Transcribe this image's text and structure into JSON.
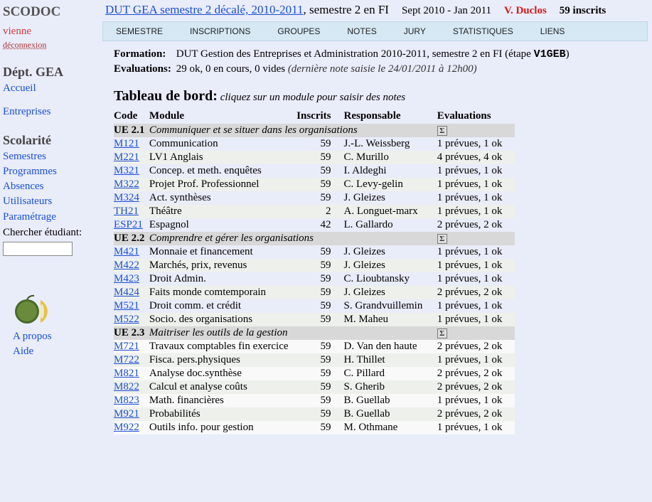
{
  "sidebar": {
    "app_title": "SCODOC",
    "user": "vienne",
    "logout": "déconnexion",
    "dept_title": "Dépt. GEA",
    "accueil": "Accueil",
    "entreprises": "Entreprises",
    "scolarite_title": "Scolarité",
    "nav": {
      "semestres": "Semestres",
      "programmes": "Programmes",
      "absences": "Absences",
      "utilisateurs": "Utilisateurs",
      "parametrage": "Paramétrage"
    },
    "search_label": "Chercher étudiant:",
    "apropos": "A propos",
    "aide": "Aide"
  },
  "header": {
    "sem_link": "DUT GEA semestre 2 décalé, 2010-2011",
    "sem_after": ", semestre 2 en FI",
    "dates": "Sept 2010 - Jan 2011",
    "resp": "V. Duclos",
    "count": "59 inscrits"
  },
  "menubar": {
    "items": [
      "SEMESTRE",
      "INSCRIPTIONS",
      "GROUPES",
      "NOTES",
      "JURY",
      "STATISTIQUES",
      "LIENS"
    ]
  },
  "info": {
    "formation_label": "Formation:",
    "formation_text": "DUT Gestion des Entreprises et Administration 2010-2011, semestre 2 en FI   (étape ",
    "formation_code": "V1GEB",
    "formation_close": ")",
    "eval_label": "Evaluations:",
    "eval_text": "29 ok, 0 en cours, 0 vides ",
    "eval_note": "(dernière note saisie le 24/01/2011 à 12h00)"
  },
  "dashboard": {
    "title": "Tableau de bord:",
    "subtitle": "cliquez sur un module pour saisir des notes"
  },
  "columns": {
    "code": "Code",
    "module": "Module",
    "inscrits": "Inscrits",
    "responsable": "Responsable",
    "evaluations": "Evaluations"
  },
  "ues": [
    {
      "code": "UE 2.1",
      "desc": "Communiquer et se situer dans les organisations",
      "modules": [
        {
          "code": "M121",
          "title": "Communication",
          "ins": "59",
          "resp": "J.-L. Weissberg",
          "eval": "1 prévues, 1 ok"
        },
        {
          "code": "M221",
          "title": "LV1 Anglais",
          "ins": "59",
          "resp": "C. Murillo",
          "eval": "4 prévues, 4 ok"
        },
        {
          "code": "M321",
          "title": "Concep. et meth. enquêtes",
          "ins": "59",
          "resp": "I. Aldeghi",
          "eval": "1 prévues, 1 ok"
        },
        {
          "code": "M322",
          "title": "Projet Prof. Professionnel",
          "ins": "59",
          "resp": "C. Levy-gelin",
          "eval": "1 prévues, 1 ok"
        },
        {
          "code": "M324",
          "title": "Act. synthèses",
          "ins": "59",
          "resp": "J. Gleizes",
          "eval": "1 prévues, 1 ok"
        },
        {
          "code": "TH21",
          "title": "Théâtre",
          "ins": "2",
          "resp": "A. Longuet-marx",
          "eval": "1 prévues, 1 ok"
        },
        {
          "code": "ESP21",
          "title": "Espagnol",
          "ins": "42",
          "resp": "L. Gallardo",
          "eval": "2 prévues, 2 ok"
        }
      ]
    },
    {
      "code": "UE 2.2",
      "desc": "Comprendre et gérer les organisations",
      "modules": [
        {
          "code": "M421",
          "title": "Monnaie et financement",
          "ins": "59",
          "resp": "J. Gleizes",
          "eval": "1 prévues, 1 ok"
        },
        {
          "code": "M422",
          "title": "Marchés, prix, revenus",
          "ins": "59",
          "resp": "J. Gleizes",
          "eval": "1 prévues, 1 ok"
        },
        {
          "code": "M423",
          "title": "Droit Admin.",
          "ins": "59",
          "resp": "C. Lioubtansky",
          "eval": "1 prévues, 1 ok"
        },
        {
          "code": "M424",
          "title": "Faits monde comtemporain",
          "ins": "59",
          "resp": "J. Gleizes",
          "eval": "2 prévues, 2 ok"
        },
        {
          "code": "M521",
          "title": "Droit comm. et crédit",
          "ins": "59",
          "resp": "S. Grandvuillemin",
          "eval": "1 prévues, 1 ok"
        },
        {
          "code": "M522",
          "title": "Socio. des organisations",
          "ins": "59",
          "resp": "M. Maheu",
          "eval": "1 prévues, 1 ok"
        }
      ]
    },
    {
      "code": "UE 2.3",
      "desc": "Maitriser les outils de la gestion",
      "modules": [
        {
          "code": "M721",
          "title": "Travaux comptables fin exercice",
          "ins": "59",
          "resp": "D. Van den haute",
          "eval": "2 prévues, 2 ok"
        },
        {
          "code": "M722",
          "title": "Fisca. pers.physiques",
          "ins": "59",
          "resp": "H. Thillet",
          "eval": "1 prévues, 1 ok"
        },
        {
          "code": "M821",
          "title": "Analyse doc.synthèse",
          "ins": "59",
          "resp": "C. Pillard",
          "eval": "2 prévues, 2 ok"
        },
        {
          "code": "M822",
          "title": "Calcul et analyse coûts",
          "ins": "59",
          "resp": "S. Gherib",
          "eval": "2 prévues, 2 ok"
        },
        {
          "code": "M823",
          "title": "Math. financières",
          "ins": "59",
          "resp": "B. Guellab",
          "eval": "1 prévues, 1 ok"
        },
        {
          "code": "M921",
          "title": "Probabilités",
          "ins": "59",
          "resp": "B. Guellab",
          "eval": "2 prévues, 2 ok"
        },
        {
          "code": "M922",
          "title": "Outils info. pour gestion",
          "ins": "59",
          "resp": "M. Othmane",
          "eval": "1 prévues, 1 ok"
        }
      ]
    }
  ],
  "colors": {
    "page_bg": "#e9ecf9",
    "menubar_bg": "#d5e8f4",
    "link": "#1a4fd6",
    "resp_red": "#d21a1a",
    "ue_row_bg": "#d8d8d8",
    "alt_row_bg": "#eef0ec"
  }
}
